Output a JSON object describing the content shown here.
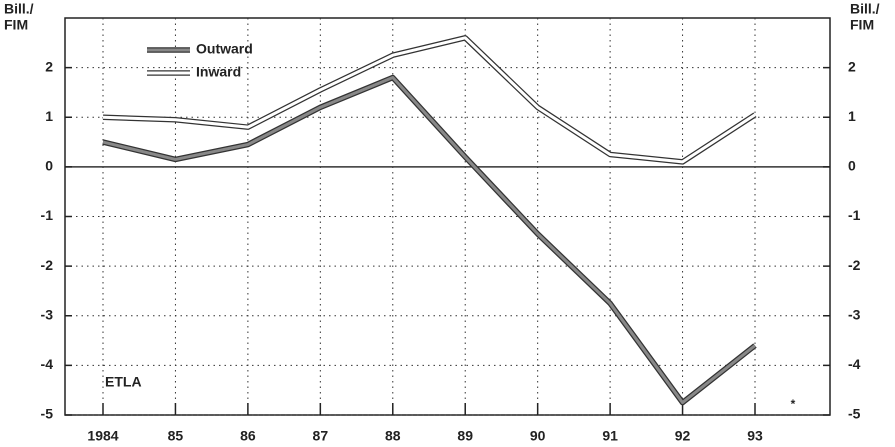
{
  "chart_data": {
    "type": "line",
    "ylabel_lines": [
      "Bill./",
      "FIM"
    ],
    "categories": [
      "1984",
      "85",
      "86",
      "87",
      "88",
      "89",
      "90",
      "91",
      "92",
      "93"
    ],
    "series": [
      {
        "name": "Outward",
        "color": "#888888",
        "values": [
          0.5,
          0.15,
          0.45,
          1.2,
          1.8,
          0.2,
          -1.35,
          -2.75,
          -4.75,
          -3.6
        ]
      },
      {
        "name": "Inward",
        "color": "#ffffff",
        "values": [
          1.0,
          0.95,
          0.8,
          1.55,
          2.25,
          2.6,
          1.2,
          0.25,
          0.1,
          1.05
        ]
      }
    ],
    "ylim": [
      -5,
      3
    ],
    "yticks": [
      -5,
      -4,
      -3,
      -2,
      -1,
      0,
      1,
      2
    ],
    "grid": true,
    "annotations": [
      "ETLA",
      "*"
    ]
  }
}
